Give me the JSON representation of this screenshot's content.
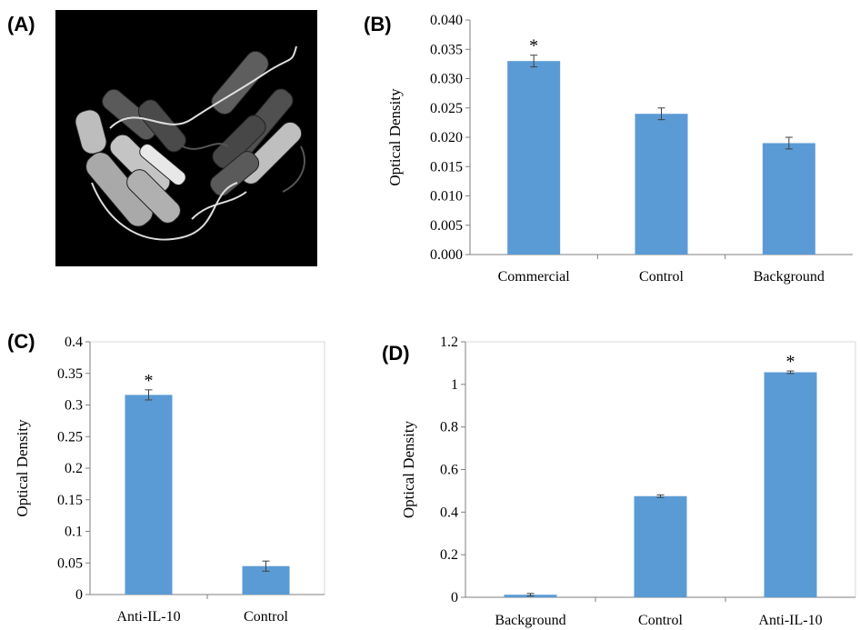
{
  "panels": {
    "a": {
      "label": "(A)"
    },
    "b": {
      "label": "(B)"
    },
    "c": {
      "label": "(C)"
    },
    "d": {
      "label": "(D)"
    }
  },
  "chart_data": [
    {
      "type": "bar",
      "panel": "B",
      "categories": [
        "Commercial",
        "Control",
        "Background"
      ],
      "values": [
        0.033,
        0.024,
        0.019
      ],
      "errors": [
        0.001,
        0.001,
        0.001
      ],
      "significance": [
        "*",
        "",
        ""
      ],
      "ylabel": "Optical Density",
      "ylim": [
        0,
        0.04
      ],
      "yticks": [
        "0.000",
        "0.005",
        "0.010",
        "0.015",
        "0.020",
        "0.025",
        "0.030",
        "0.035",
        "0.040"
      ],
      "color": "#5b9bd5",
      "grid": false
    },
    {
      "type": "bar",
      "panel": "C",
      "categories": [
        "Anti-IL-10",
        "Control"
      ],
      "values": [
        0.316,
        0.045
      ],
      "errors": [
        0.008,
        0.008
      ],
      "significance": [
        "*",
        ""
      ],
      "ylabel": "Optical Density",
      "ylim": [
        0,
        0.4
      ],
      "yticks": [
        "0",
        "0.05",
        "0.1",
        "0.15",
        "0.2",
        "0.25",
        "0.3",
        "0.35",
        "0.4"
      ],
      "color": "#5b9bd5",
      "grid": false
    },
    {
      "type": "bar",
      "panel": "D",
      "categories": [
        "Background",
        "Control",
        "Anti-IL-10"
      ],
      "values": [
        0.012,
        0.475,
        1.057
      ],
      "errors": [
        0.006,
        0.006,
        0.006
      ],
      "significance": [
        "",
        "",
        "*"
      ],
      "ylabel": "Optical Density",
      "ylim": [
        0,
        1.2
      ],
      "yticks": [
        "0",
        "0.2",
        "0.4",
        "0.6",
        "0.8",
        "1",
        "1.2"
      ],
      "color": "#5b9bd5",
      "grid": false
    }
  ]
}
